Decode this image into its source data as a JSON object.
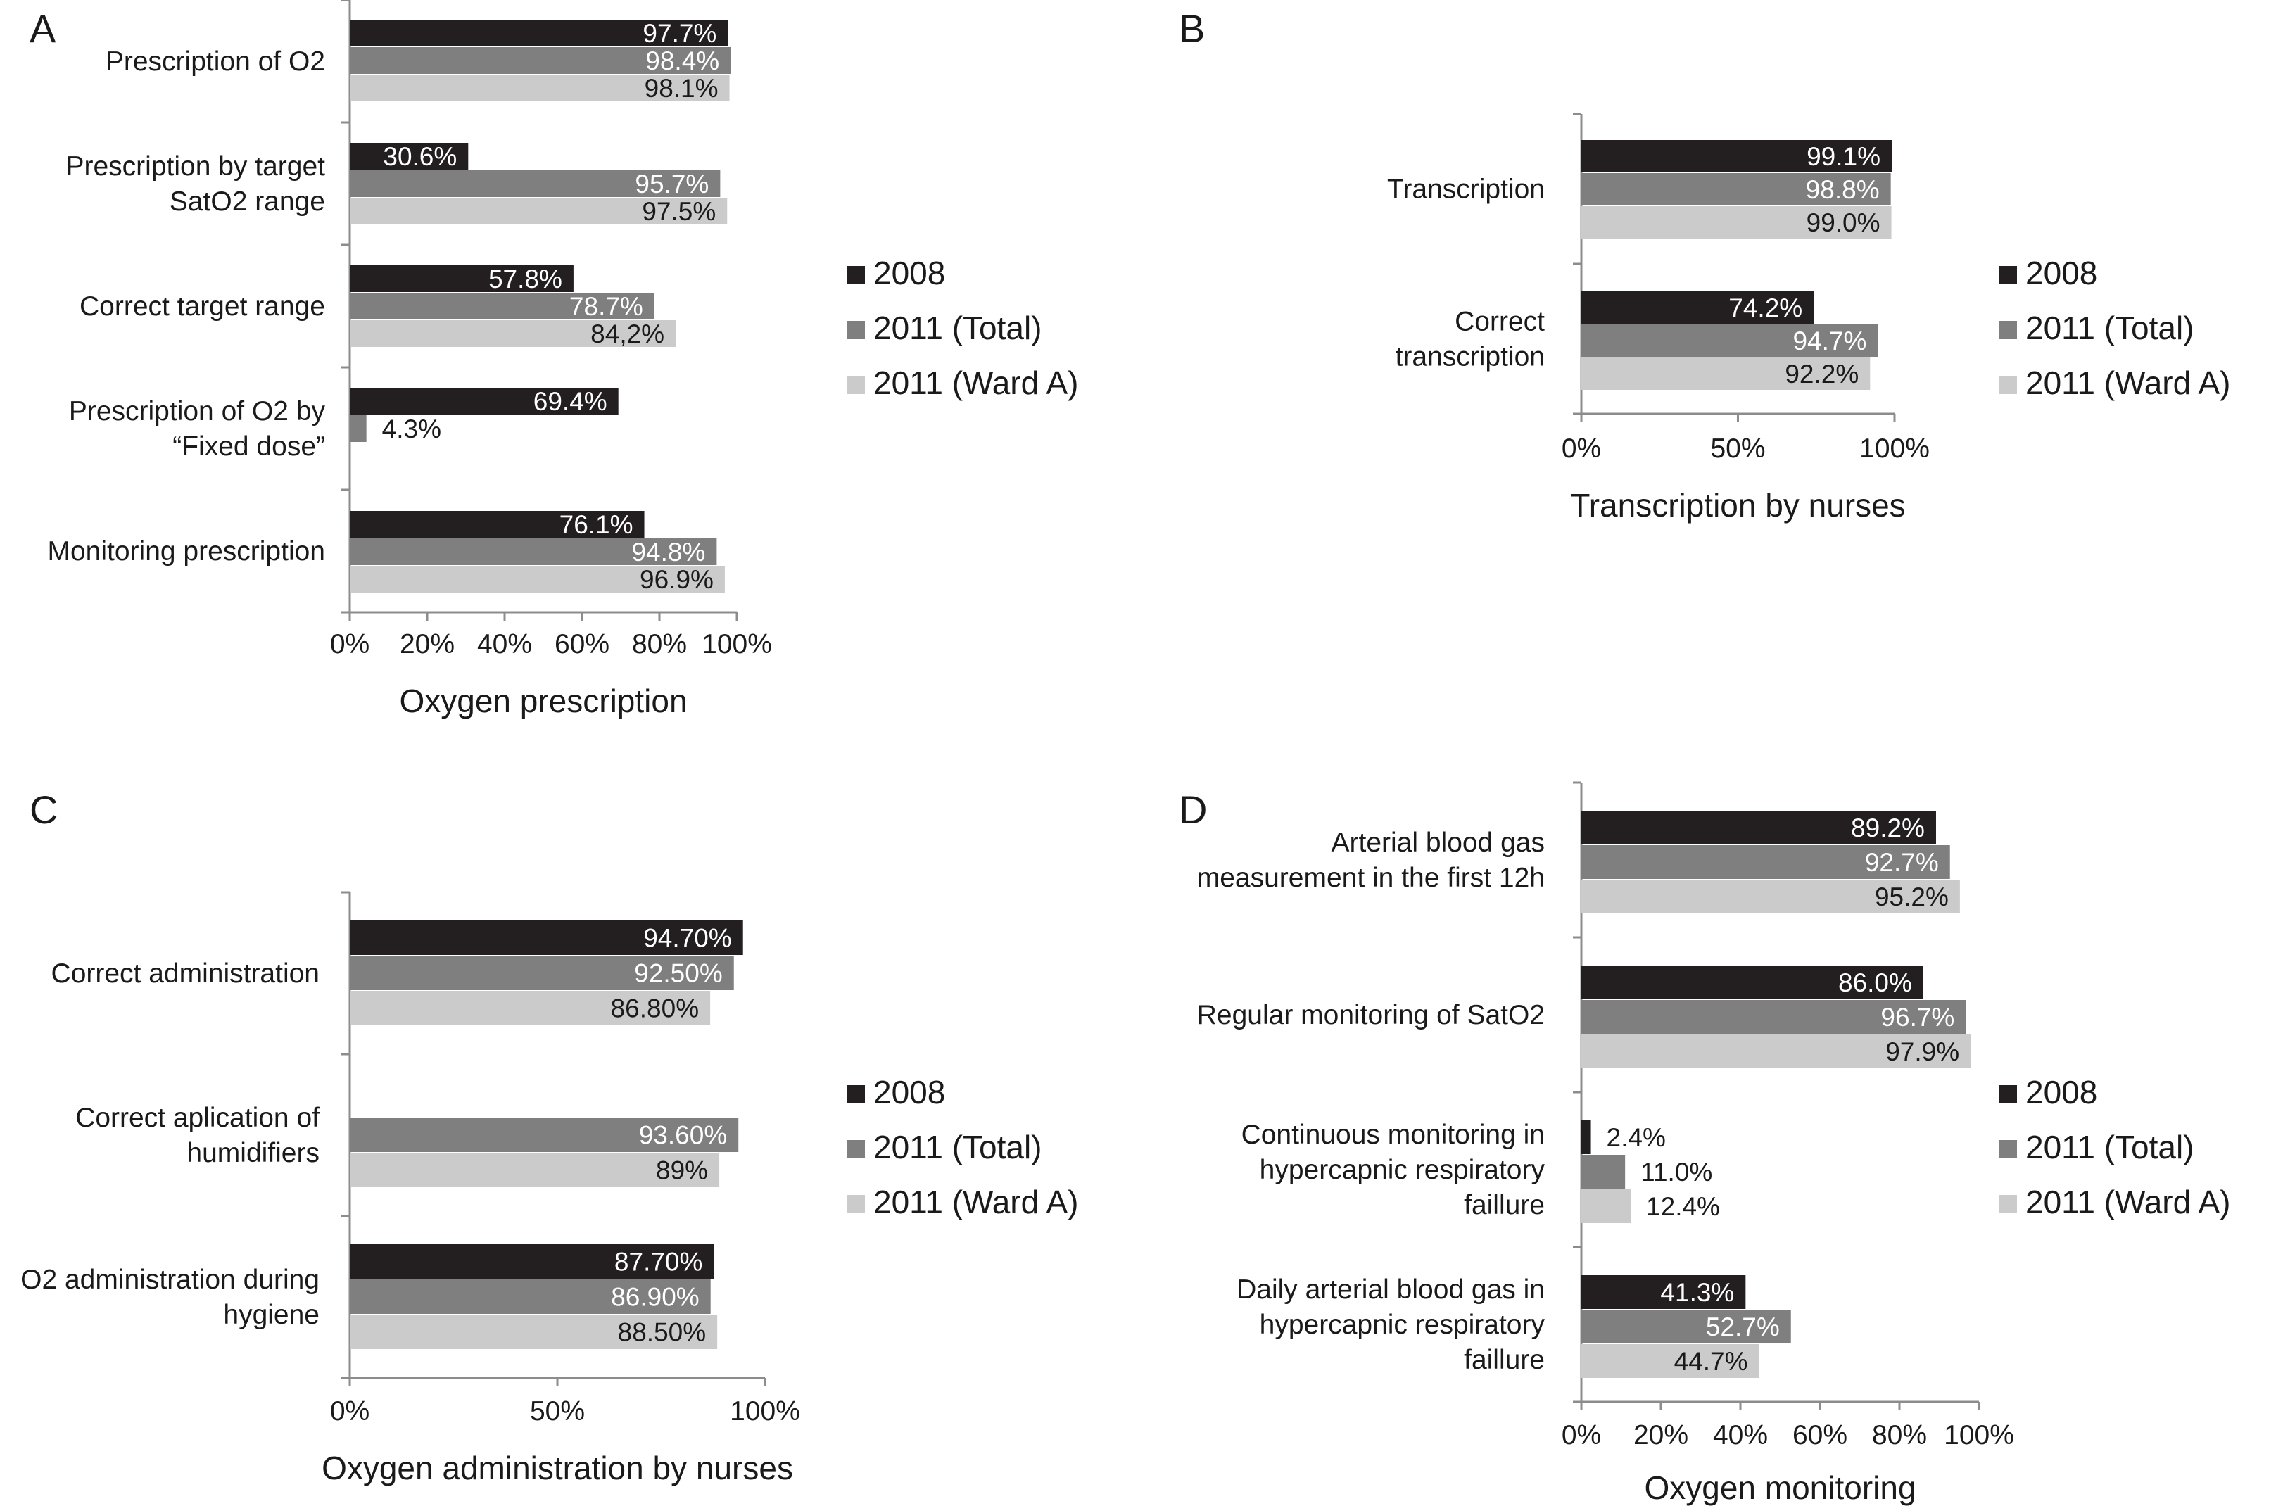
{
  "colors": {
    "series_2008": "#231f20",
    "series_2011_total": "#7f7f7f",
    "series_2011_ward_a": "#cbcbcb",
    "label_on_dark": "#ffffff",
    "label_on_light": "#1a1a1a",
    "axis": "#8c8c8c"
  },
  "legend": [
    "2008",
    "2011 (Total)",
    "2011 (Ward A)"
  ],
  "chart_data": [
    {
      "panel": "A",
      "type": "bar",
      "orientation": "horizontal",
      "xlabel": "Oxygen prescription",
      "xlim": [
        0,
        100
      ],
      "ticks": [
        "0%",
        "20%",
        "40%",
        "60%",
        "80%",
        "100%"
      ],
      "legend_position": "right",
      "categories": [
        [
          "Prescription of O2"
        ],
        [
          "Prescription by target",
          "SatO2 range"
        ],
        [
          "Correct target range"
        ],
        [
          "Prescription of O2 by",
          "“Fixed dose”"
        ],
        [
          "Monitoring prescription"
        ]
      ],
      "series": [
        {
          "name": "2008",
          "values": [
            97.7,
            30.6,
            57.8,
            69.4,
            76.1
          ],
          "labels": [
            "97.7%",
            "30.6%",
            "57.8%",
            "69.4%",
            "76.1%"
          ]
        },
        {
          "name": "2011 (Total)",
          "values": [
            98.4,
            95.7,
            78.7,
            4.3,
            94.8
          ],
          "labels": [
            "98.4%",
            "95.7%",
            "78.7%",
            "4.3%",
            "94.8%"
          ]
        },
        {
          "name": "2011 (Ward A)",
          "values": [
            98.1,
            97.5,
            84.2,
            null,
            96.9
          ],
          "labels": [
            "98.1%",
            "97.5%",
            "84,2%",
            "",
            "96.9%"
          ]
        }
      ]
    },
    {
      "panel": "B",
      "type": "bar",
      "orientation": "horizontal",
      "xlabel": "Transcription by nurses",
      "xlim": [
        0,
        100
      ],
      "ticks": [
        "0%",
        "50%",
        "100%"
      ],
      "legend_position": "right",
      "categories": [
        [
          "Transcription"
        ],
        [
          "Correct",
          "transcription"
        ]
      ],
      "series": [
        {
          "name": "2008",
          "values": [
            99.1,
            74.2
          ],
          "labels": [
            "99.1%",
            "74.2%"
          ]
        },
        {
          "name": "2011 (Total)",
          "values": [
            98.8,
            94.7
          ],
          "labels": [
            "98.8%",
            "94.7%"
          ]
        },
        {
          "name": "2011 (Ward A)",
          "values": [
            99.0,
            92.2
          ],
          "labels": [
            "99.0%",
            "92.2%"
          ]
        }
      ]
    },
    {
      "panel": "C",
      "type": "bar",
      "orientation": "horizontal",
      "xlabel": "Oxygen administration by nurses",
      "xlim": [
        0,
        100
      ],
      "ticks": [
        "0%",
        "50%",
        "100%"
      ],
      "legend_position": "right",
      "categories": [
        [
          "Correct administration"
        ],
        [
          "Correct aplication of",
          "humidifiers"
        ],
        [
          "O2 administration during",
          "hygiene"
        ]
      ],
      "series": [
        {
          "name": "2008",
          "values": [
            94.7,
            null,
            87.7
          ],
          "labels": [
            "94.70%",
            "",
            "87.70%"
          ]
        },
        {
          "name": "2011 (Total)",
          "values": [
            92.5,
            93.6,
            86.9
          ],
          "labels": [
            "92.50%",
            "93.60%",
            "86.90%"
          ]
        },
        {
          "name": "2011 (Ward A)",
          "values": [
            86.8,
            89,
            88.5
          ],
          "labels": [
            "86.80%",
            "89%",
            "88.50%"
          ]
        }
      ]
    },
    {
      "panel": "D",
      "type": "bar",
      "orientation": "horizontal",
      "xlabel": "Oxygen monitoring",
      "xlim": [
        0,
        100
      ],
      "ticks": [
        "0%",
        "20%",
        "40%",
        "60%",
        "80%",
        "100%"
      ],
      "legend_position": "right",
      "categories": [
        [
          "Arterial blood gas",
          "measurement in the first 12h"
        ],
        [
          "Regular monitoring of SatO2"
        ],
        [
          "Continuous monitoring in",
          "hypercapnic respiratory",
          "faillure"
        ],
        [
          "Daily arterial blood gas in",
          "hypercapnic respiratory",
          "faillure"
        ]
      ],
      "series": [
        {
          "name": "2008",
          "values": [
            89.2,
            86.0,
            2.4,
            41.3
          ],
          "labels": [
            "89.2%",
            "86.0%",
            "2.4%",
            "41.3%"
          ]
        },
        {
          "name": "2011 (Total)",
          "values": [
            92.7,
            96.7,
            11.0,
            52.7
          ],
          "labels": [
            "92.7%",
            "96.7%",
            "11.0%",
            "52.7%"
          ]
        },
        {
          "name": "2011 (Ward A)",
          "values": [
            95.2,
            97.9,
            12.4,
            44.7
          ],
          "labels": [
            "95.2%",
            "97.9%",
            "12.4%",
            "44.7%"
          ]
        }
      ]
    }
  ]
}
